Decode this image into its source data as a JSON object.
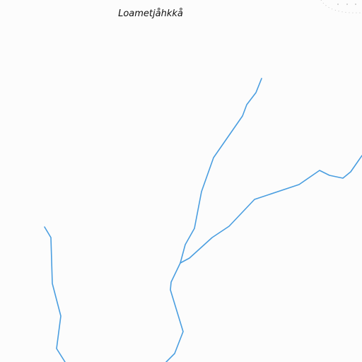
{
  "map": {
    "place_label": "Loametjåhkkå",
    "colors": {
      "background": "#fcfcfc",
      "stream": "#4a9ee0",
      "boundary": "#c8c8c8",
      "label": "#111111"
    },
    "features": [
      {
        "type": "stream",
        "name": "stream-west"
      },
      {
        "type": "stream",
        "name": "stream-central"
      },
      {
        "type": "stream",
        "name": "stream-east-tributary"
      },
      {
        "type": "boundary",
        "name": "area-boundary-top-right"
      }
    ]
  }
}
